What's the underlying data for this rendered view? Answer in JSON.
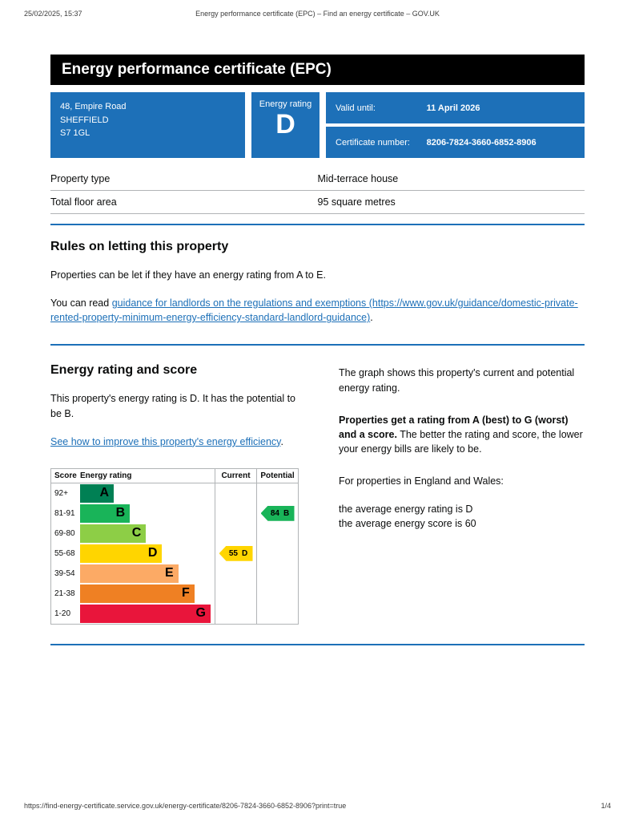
{
  "print_header": {
    "datetime": "25/02/2025, 15:37",
    "title": "Energy performance certificate (EPC) – Find an energy certificate – GOV.UK"
  },
  "banner": {
    "title": "Energy performance certificate (EPC)"
  },
  "summary": {
    "address_lines": [
      "48, Empire Road",
      "SHEFFIELD",
      "S7 1GL"
    ],
    "energy_rating_label": "Energy rating",
    "energy_rating": "D",
    "valid_until_label": "Valid until:",
    "valid_until": "11 April 2026",
    "certificate_number_label": "Certificate number:",
    "certificate_number": "8206-7824-3660-6852-8906"
  },
  "property_details": {
    "rows": [
      {
        "label": "Property type",
        "value": "Mid-terrace house"
      },
      {
        "label": "Total floor area",
        "value": "95 square metres"
      }
    ]
  },
  "rules_section": {
    "heading": "Rules on letting this property",
    "paragraph1": "Properties can be let if they have an energy rating from A to E.",
    "paragraph2_prefix": "You can read ",
    "link_text": "guidance for landlords on the regulations and exemptions (https://www.gov.uk/guidance/domestic-private-rented-property-minimum-energy-efficiency-standard-landlord-guidance)",
    "paragraph2_suffix": "."
  },
  "rating_section": {
    "heading": "Energy rating and score",
    "paragraph1": "This property's energy rating is D. It has the potential to be B.",
    "improve_link": "See how to improve this property's energy efficiency",
    "improve_link_suffix": ".",
    "right_paragraph1": "The graph shows this property's current and potential energy rating.",
    "right_bold": "Properties get a rating from A (best) to G (worst) and a score.",
    "right_paragraph2": " The better the rating and score, the lower your energy bills are likely to be.",
    "right_paragraph3": "For properties in England and Wales:",
    "right_line1": "the average energy rating is D",
    "right_line2": "the average energy score is 60"
  },
  "chart_data": {
    "type": "bar",
    "title": "Energy rating and score chart",
    "headers": {
      "score": "Score",
      "rating": "Energy rating",
      "current": "Current",
      "potential": "Potential"
    },
    "bands": [
      {
        "score": "92+",
        "letter": "A",
        "color": "#008054",
        "width": 25
      },
      {
        "score": "81-91",
        "letter": "B",
        "color": "#19b459",
        "width": 37
      },
      {
        "score": "69-80",
        "letter": "C",
        "color": "#8dce46",
        "width": 49
      },
      {
        "score": "55-68",
        "letter": "D",
        "color": "#ffd500",
        "width": 61
      },
      {
        "score": "39-54",
        "letter": "E",
        "color": "#fcaa65",
        "width": 73
      },
      {
        "score": "21-38",
        "letter": "F",
        "color": "#ef8023",
        "width": 85
      },
      {
        "score": "1-20",
        "letter": "G",
        "color": "#e9153b",
        "width": 97
      }
    ],
    "current": {
      "score": "55",
      "letter": "D",
      "band_index": 3,
      "color": "#ffd500"
    },
    "potential": {
      "score": "84",
      "letter": "B",
      "band_index": 1,
      "color": "#19b459"
    }
  },
  "print_footer": {
    "url": "https://find-energy-certificate.service.gov.uk/energy-certificate/8206-7824-3660-6852-8906?print=true",
    "page": "1/4"
  }
}
